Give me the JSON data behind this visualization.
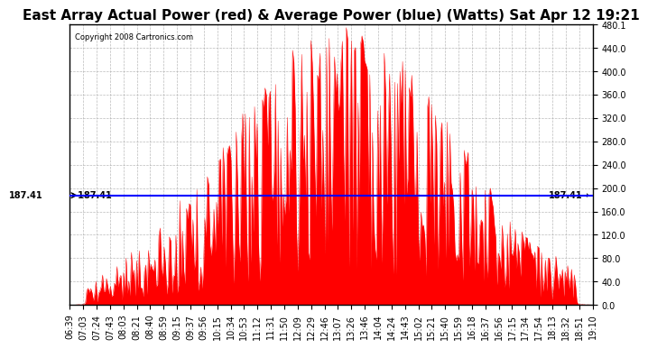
{
  "title": "East Array Actual Power (red) & Average Power (blue) (Watts) Sat Apr 12 19:21",
  "copyright": "Copyright 2008 Cartronics.com",
  "avg_power": 187.41,
  "avg_label": "187.41",
  "ylim": [
    0,
    480.1
  ],
  "yticks": [
    0.0,
    40.0,
    80.0,
    120.0,
    160.0,
    200.0,
    240.0,
    280.0,
    320.0,
    360.0,
    400.0,
    440.0,
    480.1
  ],
  "ytick_labels": [
    "0.0",
    "40.0",
    "80.0",
    "120.0",
    "160.0",
    "200.0",
    "240.0",
    "280.0",
    "320.0",
    "360.0",
    "400.0",
    "440.0",
    "480.1"
  ],
  "xtick_labels": [
    "06:39",
    "07:03",
    "07:24",
    "07:43",
    "08:03",
    "08:21",
    "08:40",
    "08:59",
    "09:15",
    "09:37",
    "09:56",
    "10:15",
    "10:34",
    "10:53",
    "11:12",
    "11:31",
    "11:50",
    "12:09",
    "12:29",
    "12:46",
    "13:07",
    "13:26",
    "13:46",
    "14:04",
    "14:24",
    "14:43",
    "15:02",
    "15:21",
    "15:40",
    "15:59",
    "16:18",
    "16:37",
    "16:56",
    "17:15",
    "17:34",
    "17:54",
    "18:13",
    "18:32",
    "18:51",
    "19:10"
  ],
  "fill_color": "#FF0000",
  "line_color": "#0000FF",
  "grid_color": "#AAAAAA",
  "bg_color": "#FFFFFF",
  "title_fontsize": 11,
  "tick_fontsize": 7
}
